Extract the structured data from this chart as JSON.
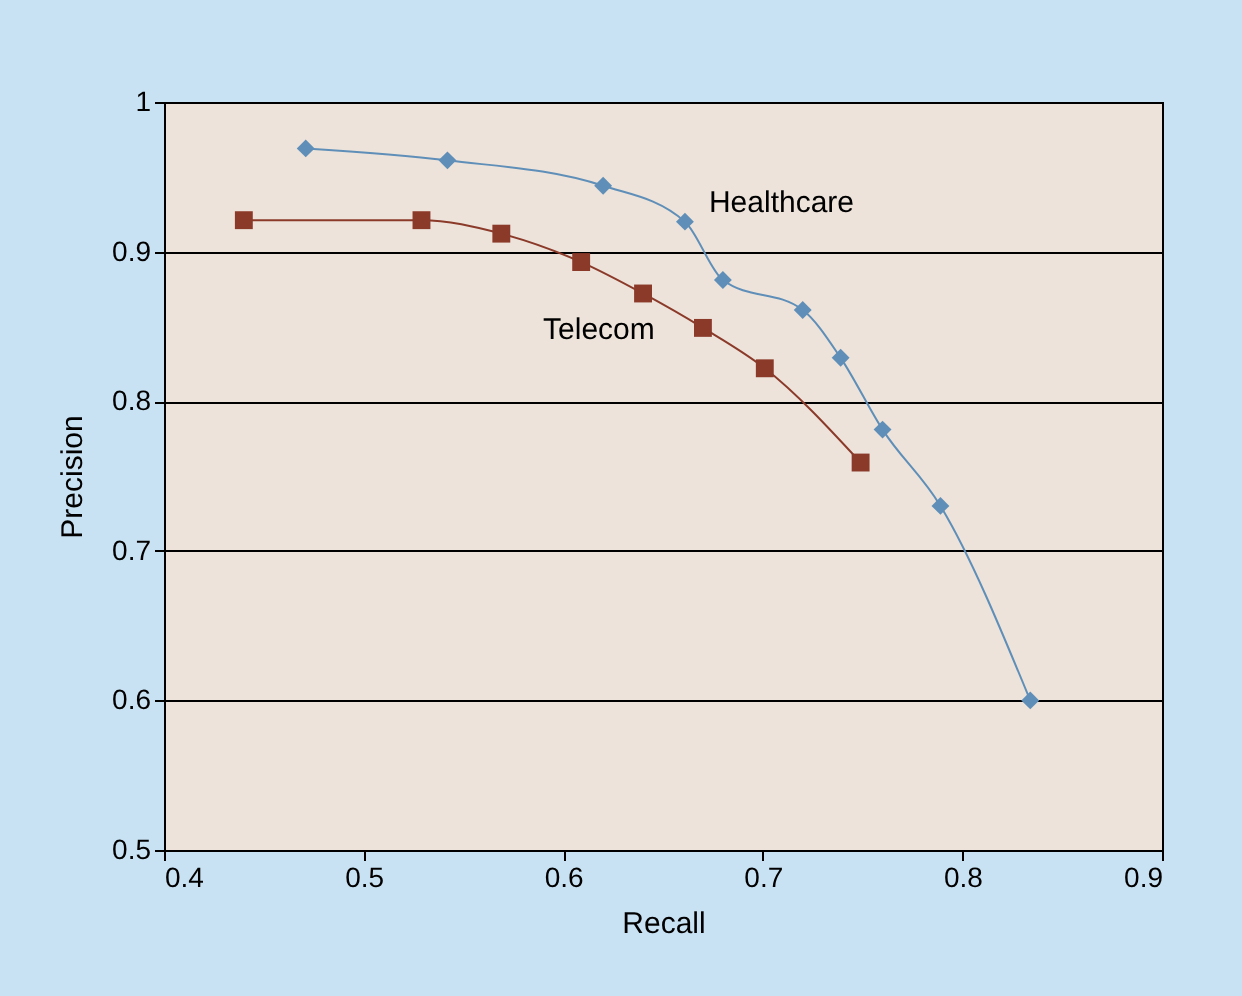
{
  "chart_data": {
    "type": "line",
    "xlabel": "Recall",
    "ylabel": "Precision",
    "xlim": [
      0.4,
      0.9
    ],
    "xticks": [
      0.4,
      0.5,
      0.6,
      0.7,
      0.8,
      0.9
    ],
    "ylim": [
      0.5,
      1
    ],
    "yticks": [
      0.5,
      0.6,
      0.7,
      0.8,
      0.9,
      1
    ],
    "grid": "y",
    "legend": false,
    "line_style": "solid",
    "series": [
      {
        "name": "Healthcare",
        "color": "#5f8fb8",
        "marker": "diamond",
        "x": [
          0.471,
          0.542,
          0.62,
          0.661,
          0.68,
          0.72,
          0.739,
          0.76,
          0.789,
          0.834
        ],
        "values": [
          0.969,
          0.961,
          0.944,
          0.92,
          0.881,
          0.861,
          0.829,
          0.781,
          0.73,
          0.6
        ]
      },
      {
        "name": "Telecom",
        "color": "#8b3a2a",
        "marker": "square",
        "x": [
          0.44,
          0.529,
          0.569,
          0.609,
          0.64,
          0.67,
          0.701,
          0.749
        ],
        "values": [
          0.921,
          0.921,
          0.912,
          0.893,
          0.872,
          0.849,
          0.822,
          0.759
        ]
      }
    ]
  }
}
